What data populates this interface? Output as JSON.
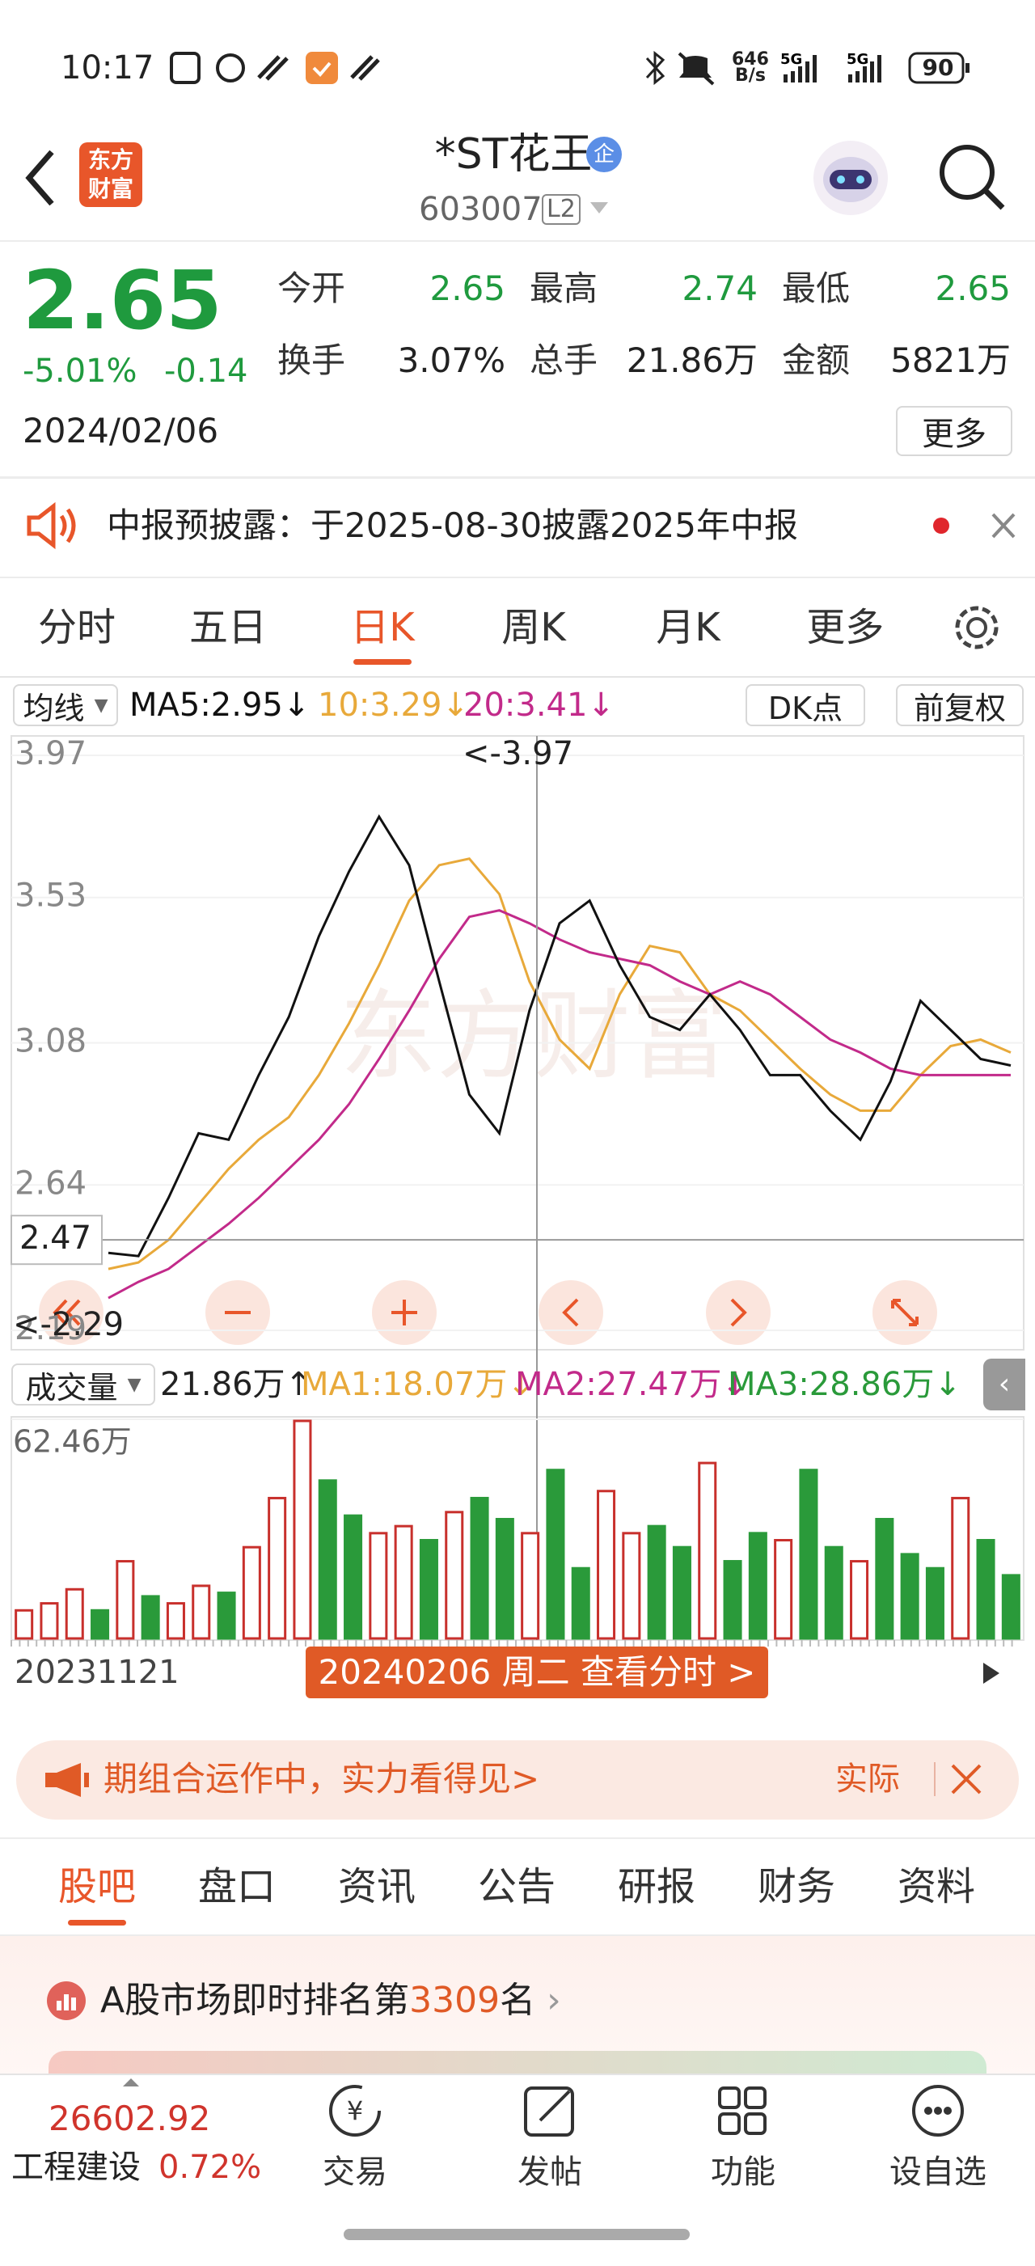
{
  "status": {
    "time": "10:17",
    "speed": "646",
    "speed_unit": "B/s",
    "battery": "90"
  },
  "header": {
    "title": "*ST花王",
    "badge": "企",
    "code": "603007",
    "level": "L2",
    "logo": "东方财富"
  },
  "quote": {
    "price": "2.65",
    "change_pct": "-5.01%",
    "change": "-0.14",
    "date": "2024/02/06",
    "more": "更多",
    "stats": [
      {
        "label": "今开",
        "value": "2.65"
      },
      {
        "label": "最高",
        "value": "2.74"
      },
      {
        "label": "最低",
        "value": "2.65"
      },
      {
        "label": "换手",
        "value": "3.07%"
      },
      {
        "label": "总手",
        "value": "21.86万"
      },
      {
        "label": "金额",
        "value": "5821万"
      }
    ]
  },
  "notice": "中报预披露：于2025-08-30披露2025年中报",
  "chart_tabs": [
    "分时",
    "五日",
    "日K",
    "周K",
    "月K",
    "更多"
  ],
  "legend": {
    "selector": "均线",
    "ma5": "MA5:2.95↓",
    "ma10": "10:3.29↓",
    "ma20": "20:3.41↓",
    "dk": "DK点",
    "adjust": "前复权"
  },
  "kline": {
    "type": "line",
    "ylim": [
      2.13,
      4.03
    ],
    "yticks": [
      3.97,
      3.53,
      3.08,
      2.64,
      2.19
    ],
    "max_label": "<-3.97",
    "min_label": "<-2.29",
    "crosshair_price": 2.47,
    "series": [
      {
        "color": "#e8a93a",
        "values": [
          2.38,
          2.4,
          2.47,
          2.58,
          2.69,
          2.78,
          2.85,
          2.98,
          3.14,
          3.32,
          3.52,
          3.63,
          3.65,
          3.54,
          3.27,
          3.09,
          3.0,
          3.23,
          3.38,
          3.36,
          3.23,
          3.18,
          3.09,
          3.0,
          2.92,
          2.87,
          2.87,
          2.98,
          3.07,
          3.09,
          3.05
        ]
      },
      {
        "color": "#c22a8a",
        "values": [
          2.29,
          2.34,
          2.38,
          2.45,
          2.52,
          2.6,
          2.69,
          2.78,
          2.89,
          3.03,
          3.18,
          3.34,
          3.47,
          3.49,
          3.45,
          3.4,
          3.36,
          3.34,
          3.32,
          3.27,
          3.23,
          3.27,
          3.23,
          3.16,
          3.09,
          3.05,
          3.0,
          2.98,
          2.98,
          2.98,
          2.98
        ]
      },
      {
        "color": "#111111",
        "values": [
          2.43,
          2.42,
          2.6,
          2.8,
          2.78,
          2.98,
          3.16,
          3.41,
          3.61,
          3.78,
          3.63,
          3.27,
          2.92,
          2.8,
          3.18,
          3.45,
          3.52,
          3.32,
          3.16,
          3.12,
          3.23,
          3.12,
          2.98,
          2.98,
          2.87,
          2.78,
          2.96,
          3.21,
          3.12,
          3.03,
          3.01
        ]
      }
    ]
  },
  "volume_legend": {
    "selector": "成交量",
    "vol": "21.86万↑",
    "ma1": "MA1:18.07万↓",
    "ma2": "MA2:27.47万↓",
    "ma3": "MA3:28.86万↓"
  },
  "volume": {
    "type": "bar",
    "ylim": [
      0,
      62.46
    ],
    "yticks": [
      {
        "value": 62.46,
        "label": "62.46万"
      }
    ],
    "values": [
      8,
      10,
      14,
      8,
      22,
      12,
      10,
      15,
      13,
      26,
      40,
      62,
      45,
      35,
      30,
      32,
      28,
      36,
      40,
      34,
      30,
      48,
      20,
      42,
      30,
      32,
      26,
      50,
      22,
      30,
      28,
      48,
      26,
      22,
      34,
      24,
      20,
      40,
      28,
      18
    ],
    "colors": [
      "#c8302c",
      "#c8302c",
      "#c8302c",
      "#2a9a3a",
      "#c8302c",
      "#2a9a3a",
      "#c8302c",
      "#c8302c",
      "#2a9a3a",
      "#c8302c",
      "#c8302c",
      "#c8302c",
      "#2a9a3a",
      "#2a9a3a",
      "#c8302c",
      "#c8302c",
      "#2a9a3a",
      "#c8302c",
      "#2a9a3a",
      "#2a9a3a",
      "#c8302c",
      "#2a9a3a",
      "#2a9a3a",
      "#c8302c",
      "#c8302c",
      "#2a9a3a",
      "#2a9a3a",
      "#c8302c",
      "#2a9a3a",
      "#2a9a3a",
      "#c8302c",
      "#2a9a3a",
      "#2a9a3a",
      "#c8302c",
      "#2a9a3a",
      "#2a9a3a",
      "#2a9a3a",
      "#c8302c",
      "#2a9a3a",
      "#2a9a3a"
    ]
  },
  "dates": {
    "start": "20231121",
    "tooltip": "20240206 周二 查看分时 >"
  },
  "banner": {
    "text": "期组合运作中，实力看得见>",
    "side": "实际"
  },
  "tabs": [
    "股吧",
    "盘口",
    "资讯",
    "公告",
    "研报",
    "财务",
    "资料"
  ],
  "rank": {
    "prefix": "A股市场即时排名第",
    "number": "3309",
    "suffix": "名"
  },
  "bottom": {
    "index": "26602.92",
    "sector": "工程建设",
    "sector_pct": "0.72%",
    "nav": [
      "交易",
      "发帖",
      "功能",
      "设自选"
    ]
  }
}
